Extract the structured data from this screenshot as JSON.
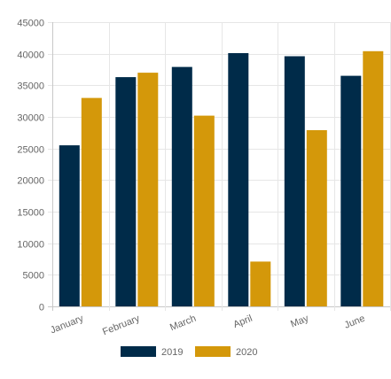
{
  "chart_data": {
    "type": "bar",
    "categories": [
      "January",
      "February",
      "March",
      "April",
      "May",
      "June"
    ],
    "series": [
      {
        "name": "2019",
        "color": "#002b49",
        "values": [
          25500,
          36300,
          37900,
          40100,
          39600,
          36500
        ]
      },
      {
        "name": "2020",
        "color": "#d4980a",
        "values": [
          33000,
          37000,
          30200,
          7100,
          27900,
          40400
        ]
      }
    ],
    "ylim": [
      0,
      45000
    ],
    "yticks": [
      0,
      5000,
      10000,
      15000,
      20000,
      25000,
      30000,
      35000,
      40000,
      45000
    ],
    "grid": true,
    "legend_position": "bottom"
  }
}
